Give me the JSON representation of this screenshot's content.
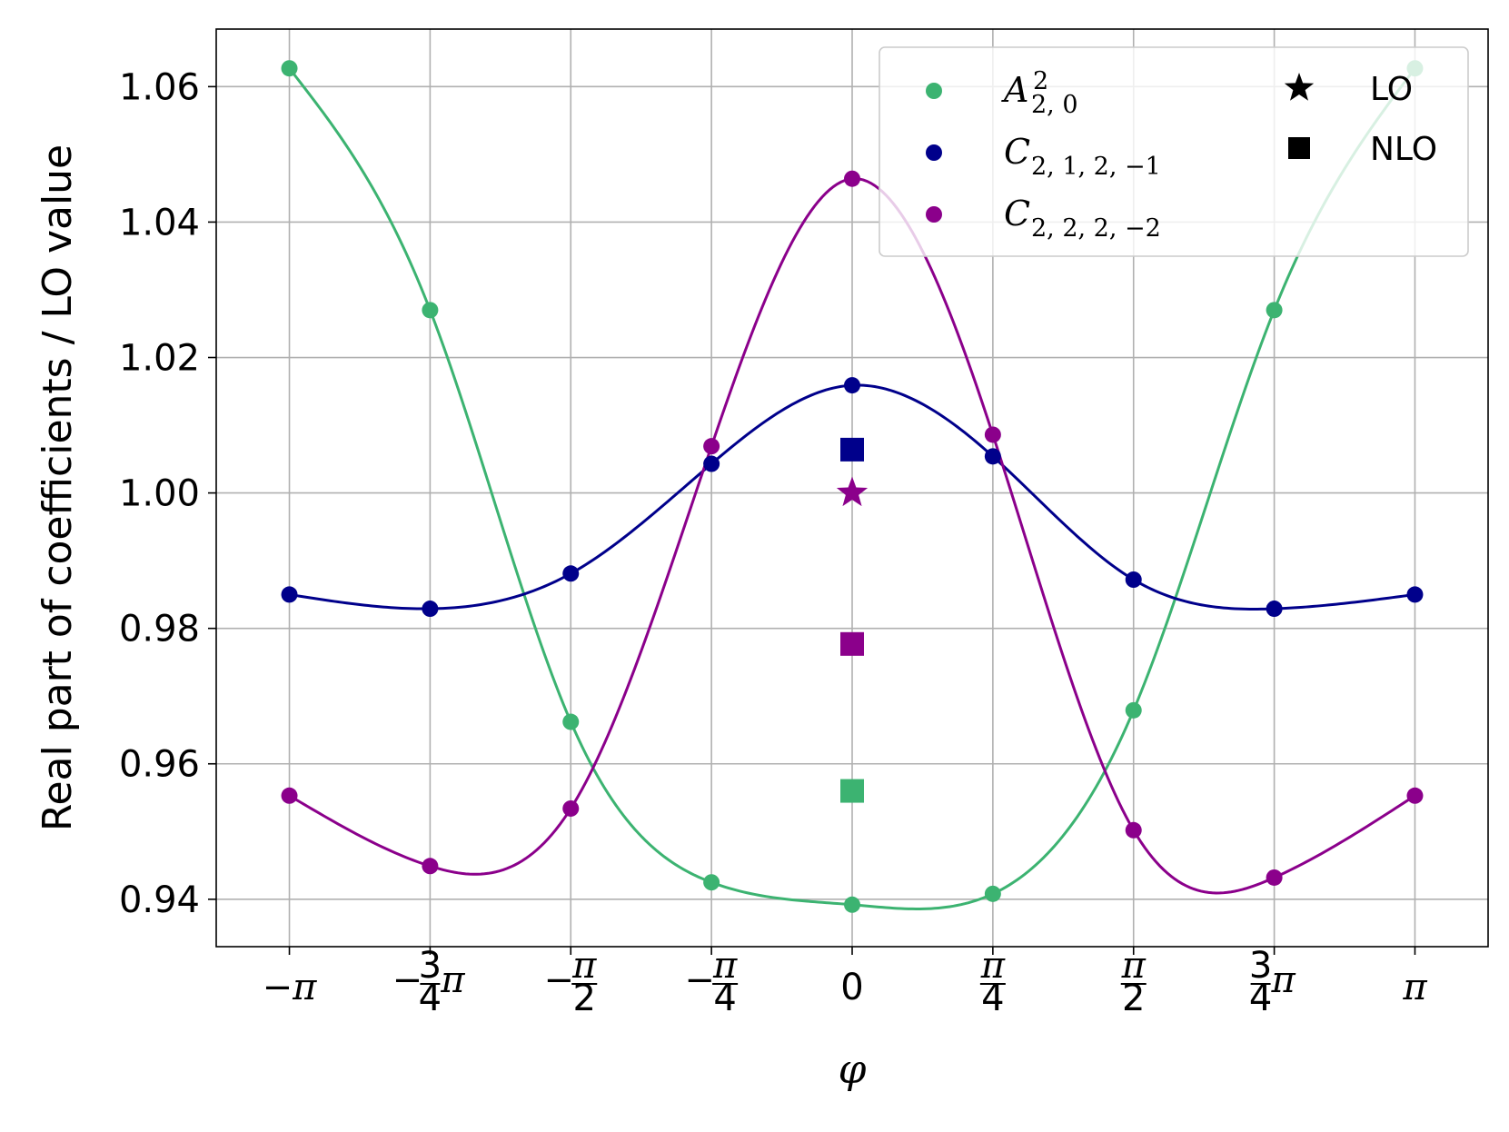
{
  "chart_data": {
    "type": "line",
    "xlabel": "φ",
    "ylabel": "Real part of coefficients / LO value",
    "xlim": [
      -3.55,
      3.55
    ],
    "ylim": [
      0.933,
      1.0685
    ],
    "grid": true,
    "legend_placement": "top-right",
    "x_ticks": [
      {
        "value": -3.14159,
        "sign": "−",
        "num": "",
        "den": "",
        "tail": "π"
      },
      {
        "value": -2.35619,
        "sign": "−",
        "num": "3",
        "den": "4",
        "tail": "π"
      },
      {
        "value": -1.5708,
        "sign": "−",
        "num": "π",
        "den": "2",
        "tail": ""
      },
      {
        "value": -0.785398,
        "sign": "−",
        "num": "π",
        "den": "4",
        "tail": ""
      },
      {
        "value": 0,
        "sign": "",
        "num": "",
        "den": "",
        "tail": "0"
      },
      {
        "value": 0.785398,
        "sign": "",
        "num": "π",
        "den": "4",
        "tail": ""
      },
      {
        "value": 1.5708,
        "sign": "",
        "num": "π",
        "den": "2",
        "tail": ""
      },
      {
        "value": 2.35619,
        "sign": "",
        "num": "3",
        "den": "4",
        "tail": "π"
      },
      {
        "value": 3.14159,
        "sign": "",
        "num": "",
        "den": "",
        "tail": "π"
      }
    ],
    "y_ticks": [
      0.94,
      0.96,
      0.98,
      1.0,
      1.02,
      1.04,
      1.06
    ],
    "y_tick_labels": [
      "0.94",
      "0.96",
      "0.98",
      "1.00",
      "1.02",
      "1.04",
      "1.06"
    ],
    "series": [
      {
        "name": "A",
        "name_sup": "2",
        "name_sub": "2, 0",
        "color": "#3cb371",
        "x": [
          -3.14159,
          -2.35619,
          -1.5708,
          -0.785398,
          0,
          0.785398,
          1.5708,
          2.35619,
          3.14159
        ],
        "y": [
          1.0627,
          1.027,
          0.9662,
          0.9425,
          0.9392,
          0.9408,
          0.9679,
          1.027,
          1.0627
        ],
        "nlo": 0.956
      },
      {
        "name": "C",
        "name_sup": "",
        "name_sub": "2, 1, 2, −1",
        "color": "#00008b",
        "x": [
          -3.14159,
          -2.35619,
          -1.5708,
          -0.785398,
          0,
          0.785398,
          1.5708,
          2.35619,
          3.14159
        ],
        "y": [
          0.985,
          0.9829,
          0.9881,
          1.0043,
          1.0159,
          1.0054,
          0.9872,
          0.9829,
          0.985
        ],
        "nlo": 1.0064
      },
      {
        "name": "C",
        "name_sup": "",
        "name_sub": "2, 2, 2, −2",
        "color": "#8b008b",
        "x": [
          -3.14159,
          -2.35619,
          -1.5708,
          -0.785398,
          0,
          0.785398,
          1.5708,
          2.35619,
          3.14159
        ],
        "y": [
          0.9553,
          0.9449,
          0.9534,
          1.0069,
          1.0464,
          1.0086,
          0.9502,
          0.9432,
          0.9553
        ],
        "nlo": 0.9777
      }
    ],
    "lo_point": {
      "x": 0,
      "y": 1.0,
      "color": "#8b008b"
    },
    "marker_legend": [
      {
        "label": "LO",
        "symbol": "star-icon"
      },
      {
        "label": "NLO",
        "symbol": "square-icon"
      }
    ]
  }
}
